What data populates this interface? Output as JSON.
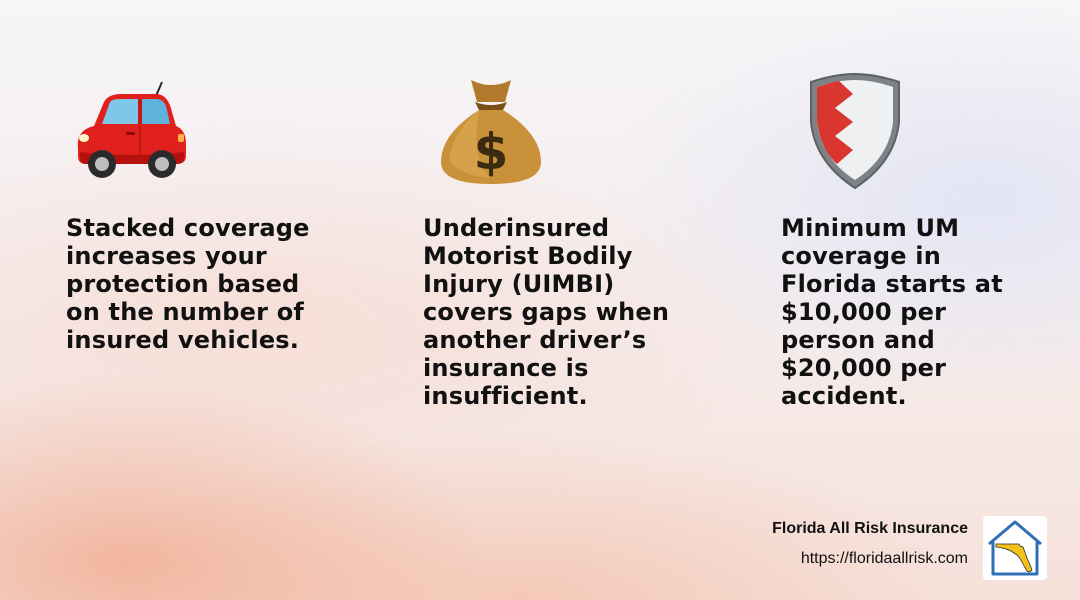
{
  "columns": [
    {
      "icon": "red-car-icon",
      "lines": [
        "Stacked coverage",
        "increases your",
        "protection based",
        "on the number of",
        "insured vehicles."
      ]
    },
    {
      "icon": "money-bag-icon",
      "lines": [
        "Underinsured",
        "Motorist Bodily",
        "Injury (UIMBI)",
        "covers gaps when",
        "another driver’s",
        "insurance is",
        "insufficient."
      ]
    },
    {
      "icon": "shield-icon",
      "lines": [
        "Minimum UM",
        "coverage in",
        "Florida starts at",
        "$10,000 per",
        "person and",
        "$20,000 per",
        "accident."
      ]
    }
  ],
  "footer": {
    "company": "Florida All Risk Insurance",
    "url": "https://floridaallrisk.com",
    "logo_icon": "house-florida-logo-icon"
  },
  "colors": {
    "car_red": "#e0201c",
    "bag_gold": "#c9923a",
    "shield_red": "#d8362f",
    "logo_blue": "#2f6fb5",
    "florida_yellow": "#f2c21a"
  }
}
